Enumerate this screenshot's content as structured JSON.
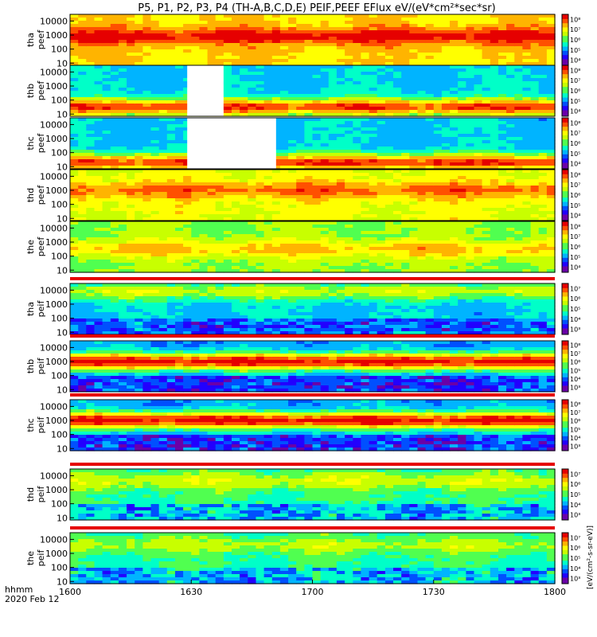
{
  "chart_data": {
    "type": "heatmap",
    "title": "P5, P1, P2, P3, P4 (TH-A,B,C,D,E) PEIF,PEEF EFlux eV/(eV*cm²*sec*sr)",
    "date_label": "2020 Feb 12",
    "time_label": "hhmm",
    "x_ticks": [
      "1600",
      "1630",
      "1700",
      "1730",
      "1800"
    ],
    "x_range_minutes": [
      0,
      120
    ],
    "y_ticks": [
      "10",
      "100",
      "1000",
      "10000"
    ],
    "ylim_eV": [
      7,
      30000
    ],
    "units_label": "[eV/(cm²-s-sr-eV)]",
    "colormap": [
      "#6a00a8",
      "#2200ff",
      "#0050ff",
      "#00b4ff",
      "#00ffc8",
      "#50ff50",
      "#c8ff00",
      "#ffff00",
      "#ffb400",
      "#ff5000",
      "#e60000"
    ],
    "panels": [
      {
        "probe": "tha",
        "species": "peef",
        "cbar": [
          "10⁴",
          "10⁵",
          "10⁶",
          "10⁷",
          "10⁸"
        ],
        "base": 0.72,
        "peak": 0.95,
        "peak_log": 2.9,
        "blank": null
      },
      {
        "probe": "thb",
        "species": "peef",
        "cbar": [
          "10⁴",
          "10⁵",
          "10⁶",
          "10⁷",
          "10⁸"
        ],
        "base": 0.35,
        "peak": 0.9,
        "peak_log": 1.5,
        "blank": [
          29,
          38
        ]
      },
      {
        "probe": "thc",
        "species": "peef",
        "cbar": [
          "10⁴",
          "10⁵",
          "10⁶",
          "10⁷",
          "10⁸"
        ],
        "base": 0.35,
        "peak": 0.9,
        "peak_log": 1.3,
        "blank": [
          29,
          51
        ]
      },
      {
        "probe": "thd",
        "species": "peef",
        "cbar": [
          "10⁴",
          "10⁵",
          "10⁶",
          "10⁷",
          "10⁸"
        ],
        "base": 0.65,
        "peak": 0.85,
        "peak_log": 3.0,
        "blank": null
      },
      {
        "probe": "the",
        "species": "peef",
        "cbar": [
          "10⁴",
          "10⁵",
          "10⁶",
          "10⁷",
          "10⁸"
        ],
        "base": 0.55,
        "peak": 0.75,
        "peak_log": 2.5,
        "blank": null
      },
      {
        "probe": "tha",
        "species": "peif",
        "cbar": [
          "10³",
          "10⁴",
          "10⁵",
          "10⁶",
          "10⁷"
        ],
        "base": 0.35,
        "peak": 0.6,
        "peak_log": 3.9,
        "blank": null
      },
      {
        "probe": "thb",
        "species": "peif",
        "cbar": [
          "10³",
          "10⁴",
          "10⁵",
          "10⁶",
          "10⁷",
          "10⁸"
        ],
        "base": 0.3,
        "peak": 0.95,
        "peak_log": 3.0,
        "blank": null
      },
      {
        "probe": "thc",
        "species": "peif",
        "cbar": [
          "10³",
          "10⁴",
          "10⁵",
          "10⁶",
          "10⁷",
          "10⁸"
        ],
        "base": 0.3,
        "peak": 0.95,
        "peak_log": 3.0,
        "blank": null
      },
      {
        "probe": "thd",
        "species": "peif",
        "cbar": [
          "10³",
          "10⁴",
          "10⁵",
          "10⁶",
          "10⁷"
        ],
        "base": 0.45,
        "peak": 0.62,
        "peak_log": 3.6,
        "blank": null
      },
      {
        "probe": "the",
        "species": "peif",
        "cbar": [
          "10³",
          "10⁴",
          "10⁵",
          "10⁶",
          "10⁷"
        ],
        "base": 0.45,
        "peak": 0.58,
        "peak_log": 3.6,
        "blank": null
      }
    ]
  }
}
